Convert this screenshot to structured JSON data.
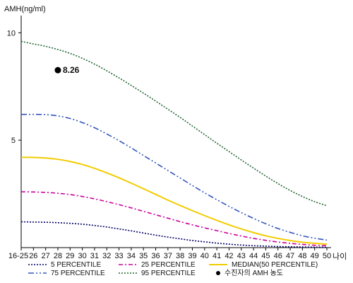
{
  "chart_data": {
    "type": "line",
    "ylabel": "AMH(ng/ml)",
    "xlabel": "나이",
    "x_ticks": [
      "16-25",
      "26",
      "27",
      "28",
      "29",
      "30",
      "31",
      "32",
      "33",
      "34",
      "35",
      "36",
      "37",
      "38",
      "39",
      "40",
      "41",
      "42",
      "43",
      "44",
      "45",
      "46",
      "47",
      "48",
      "49",
      "50"
    ],
    "x": [
      25,
      26,
      27,
      28,
      29,
      30,
      31,
      32,
      33,
      34,
      35,
      36,
      37,
      38,
      39,
      40,
      41,
      42,
      43,
      44,
      45,
      46,
      47,
      48,
      49,
      50
    ],
    "y_ticks": [
      5,
      10
    ],
    "ylim": [
      0,
      10.8
    ],
    "xlim": [
      25,
      50
    ],
    "series": [
      {
        "name": "5 PERCENTILE",
        "color": "#000066",
        "dash": "2,2",
        "values": [
          1.2,
          1.19,
          1.18,
          1.16,
          1.13,
          1.09,
          1.03,
          0.96,
          0.87,
          0.78,
          0.68,
          0.58,
          0.49,
          0.41,
          0.33,
          0.27,
          0.21,
          0.16,
          0.12,
          0.09,
          0.07,
          0.05,
          0.04,
          0.03,
          0.02,
          0.02
        ]
      },
      {
        "name": "25 PERCENTILE",
        "color": "#cc0099",
        "dash": "6,3,2,3",
        "values": [
          2.6,
          2.59,
          2.57,
          2.53,
          2.47,
          2.38,
          2.27,
          2.14,
          2.0,
          1.85,
          1.69,
          1.53,
          1.37,
          1.21,
          1.06,
          0.92,
          0.79,
          0.66,
          0.54,
          0.43,
          0.34,
          0.26,
          0.2,
          0.15,
          0.11,
          0.09
        ]
      },
      {
        "name": "MEDIAN(50 PERCENTILE)",
        "color": "#f2cc00",
        "dash": "",
        "values": [
          4.2,
          4.2,
          4.17,
          4.11,
          4.01,
          3.87,
          3.69,
          3.48,
          3.25,
          3.0,
          2.74,
          2.48,
          2.21,
          1.96,
          1.72,
          1.49,
          1.27,
          1.06,
          0.87,
          0.7,
          0.55,
          0.43,
          0.33,
          0.25,
          0.2,
          0.16
        ]
      },
      {
        "name": "75 PERCENTILE",
        "color": "#3355bb",
        "dash": "8,3,2,3,2,3",
        "values": [
          6.2,
          6.2,
          6.19,
          6.13,
          6.01,
          5.82,
          5.58,
          5.29,
          4.98,
          4.64,
          4.29,
          3.94,
          3.59,
          3.24,
          2.89,
          2.55,
          2.23,
          1.92,
          1.63,
          1.36,
          1.11,
          0.89,
          0.71,
          0.55,
          0.44,
          0.35
        ]
      },
      {
        "name": "95 PERCENTILE",
        "color": "#226633",
        "dash": "2,2",
        "values": [
          9.6,
          9.48,
          9.37,
          9.22,
          9.04,
          8.81,
          8.54,
          8.23,
          7.9,
          7.55,
          7.19,
          6.82,
          6.44,
          6.06,
          5.66,
          5.26,
          4.86,
          4.47,
          4.08,
          3.7,
          3.33,
          2.98,
          2.66,
          2.38,
          2.14,
          1.95
        ]
      }
    ],
    "points": [
      {
        "name": "수진자의 AMH 농도",
        "x": 28,
        "y": 8.26,
        "label": "8.26",
        "color": "#000000"
      }
    ],
    "legend_position": "bottom",
    "legend": [
      {
        "series": "5 PERCENTILE"
      },
      {
        "series": "25 PERCENTILE"
      },
      {
        "series": "MEDIAN(50 PERCENTILE)"
      },
      {
        "series": "75 PERCENTILE"
      },
      {
        "series": "95 PERCENTILE"
      },
      {
        "point": "수진자의 AMH 농도"
      }
    ],
    "grid": false
  }
}
